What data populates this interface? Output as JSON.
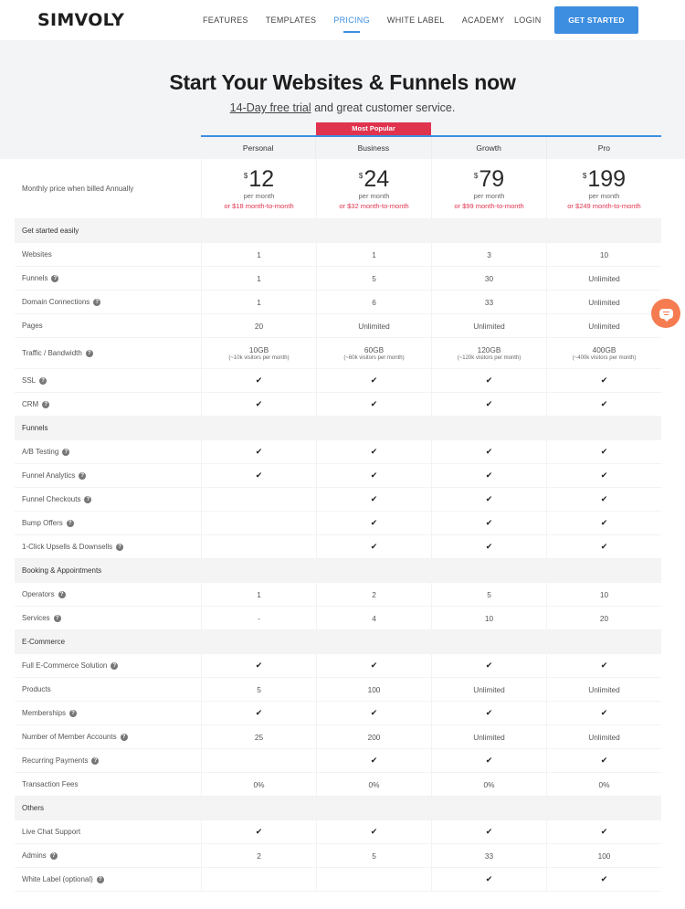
{
  "header": {
    "logo": "SIMVOLY",
    "nav": [
      {
        "label": "FEATURES",
        "active": false
      },
      {
        "label": "TEMPLATES",
        "active": false
      },
      {
        "label": "PRICING",
        "active": true
      },
      {
        "label": "WHITE LABEL",
        "active": false
      },
      {
        "label": "ACADEMY",
        "active": false
      }
    ],
    "login": "LOGIN",
    "cta": "GET STARTED"
  },
  "hero": {
    "title": "Start Your Websites & Funnels now",
    "trial_link": "14-Day free trial",
    "subtitle_rest": " and great customer service."
  },
  "pricing": {
    "badge": "Most Popular",
    "plans": [
      "Personal",
      "Business",
      "Growth",
      "Pro"
    ],
    "price_label": "Monthly price when billed Annually",
    "currency": "$",
    "per_month": "per month",
    "prices": [
      {
        "amount": "12",
        "monthly": "or $18 month-to-month"
      },
      {
        "amount": "24",
        "monthly": "or $32 month-to-month"
      },
      {
        "amount": "79",
        "monthly": "or $99 month-to-month"
      },
      {
        "amount": "199",
        "monthly": "or $249 month-to-month"
      }
    ],
    "sections": [
      {
        "title": "Get started easily",
        "rows": [
          {
            "label": "Websites",
            "help": false,
            "values": [
              "1",
              "1",
              "3",
              "10"
            ]
          },
          {
            "label": "Funnels",
            "help": true,
            "values": [
              "1",
              "5",
              "30",
              "Unlimited"
            ]
          },
          {
            "label": "Domain Connections",
            "help": true,
            "values": [
              "1",
              "6",
              "33",
              "Unlimited"
            ]
          },
          {
            "label": "Pages",
            "help": false,
            "values": [
              "20",
              "Unlimited",
              "Unlimited",
              "Unlimited"
            ]
          },
          {
            "label": "Traffic / Bandwidth",
            "help": true,
            "values": [
              "10GB",
              "60GB",
              "120GB",
              "400GB"
            ],
            "notes": [
              "(~10k visitors per month)",
              "(~60k visitors per month)",
              "(~120k visitors per month)",
              "(~400k visitors per month)"
            ]
          },
          {
            "label": "SSL",
            "help": true,
            "values": [
              "✔",
              "✔",
              "✔",
              "✔"
            ]
          },
          {
            "label": "CRM",
            "help": true,
            "values": [
              "✔",
              "✔",
              "✔",
              "✔"
            ]
          }
        ]
      },
      {
        "title": "Funnels",
        "rows": [
          {
            "label": "A/B Testing",
            "help": true,
            "values": [
              "✔",
              "✔",
              "✔",
              "✔"
            ]
          },
          {
            "label": "Funnel Analytics",
            "help": true,
            "values": [
              "✔",
              "✔",
              "✔",
              "✔"
            ]
          },
          {
            "label": "Funnel Checkouts",
            "help": true,
            "values": [
              "",
              "✔",
              "✔",
              "✔"
            ]
          },
          {
            "label": "Bump Offers",
            "help": true,
            "values": [
              "",
              "✔",
              "✔",
              "✔"
            ]
          },
          {
            "label": "1-Click Upsells & Downsells",
            "help": true,
            "values": [
              "",
              "✔",
              "✔",
              "✔"
            ]
          }
        ]
      },
      {
        "title": "Booking & Appointments",
        "rows": [
          {
            "label": "Operators",
            "help": true,
            "values": [
              "1",
              "2",
              "5",
              "10"
            ]
          },
          {
            "label": "Services",
            "help": true,
            "values": [
              "-",
              "4",
              "10",
              "20"
            ]
          }
        ]
      },
      {
        "title": "E-Commerce",
        "rows": [
          {
            "label": "Full E-Commerce Solution",
            "help": true,
            "values": [
              "✔",
              "✔",
              "✔",
              "✔"
            ]
          },
          {
            "label": "Products",
            "help": false,
            "values": [
              "5",
              "100",
              "Unlimited",
              "Unlimited"
            ]
          },
          {
            "label": "Memberships",
            "help": true,
            "values": [
              "✔",
              "✔",
              "✔",
              "✔"
            ]
          },
          {
            "label": "Number of Member Accounts",
            "help": true,
            "values": [
              "25",
              "200",
              "Unlimited",
              "Unlimited"
            ]
          },
          {
            "label": "Recurring Payments",
            "help": true,
            "values": [
              "",
              "✔",
              "✔",
              "✔"
            ]
          },
          {
            "label": "Transaction Fees",
            "help": false,
            "values": [
              "0%",
              "0%",
              "0%",
              "0%"
            ]
          }
        ]
      },
      {
        "title": "Others",
        "rows": [
          {
            "label": "Live Chat Support",
            "help": false,
            "values": [
              "✔",
              "✔",
              "✔",
              "✔"
            ]
          },
          {
            "label": "Admins",
            "help": true,
            "values": [
              "2",
              "5",
              "33",
              "100"
            ]
          },
          {
            "label": "White Label (optional)",
            "help": true,
            "values": [
              "",
              "",
              "✔",
              "✔"
            ]
          }
        ]
      }
    ]
  },
  "icons": {
    "help": "?",
    "check": "✔",
    "chat": "chat-bubble-icon"
  }
}
